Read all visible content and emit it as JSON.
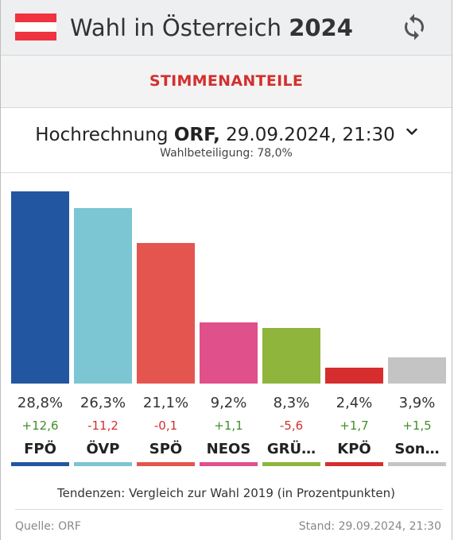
{
  "header": {
    "title_prefix": "Wahl in Österreich",
    "title_year": "2024",
    "flag_colors": [
      "#ef3340",
      "#ffffff",
      "#ef3340"
    ],
    "refresh_icon": "refresh-icon"
  },
  "tab": {
    "label": "STIMMENANTEILE"
  },
  "selector": {
    "prefix": "Hochrechnung",
    "source": "ORF,",
    "datetime": "29.09.2024, 21:30",
    "turnout": "Wahlbeteiligung: 78,0%"
  },
  "chart_data": {
    "type": "bar",
    "categories": [
      "FPÖ",
      "ÖVP",
      "SPÖ",
      "NEOS",
      "GRÜ…",
      "KPÖ",
      "Son…"
    ],
    "values": [
      28.8,
      26.3,
      21.1,
      9.2,
      8.3,
      2.4,
      3.9
    ],
    "value_labels": [
      "28,8%",
      "26,3%",
      "21,1%",
      "9,2%",
      "8,3%",
      "2,4%",
      "3,9%"
    ],
    "changes": [
      12.6,
      -11.2,
      -0.1,
      1.1,
      -5.6,
      1.7,
      1.5
    ],
    "change_labels": [
      "+12,6",
      "-11,2",
      "-0,1",
      "+1,1",
      "-5,6",
      "+1,7",
      "+1,5"
    ],
    "colors": [
      "#2356a0",
      "#7cc5d2",
      "#e4554f",
      "#e0508a",
      "#8fb53c",
      "#d62e2e",
      "#c4c4c4"
    ],
    "ylim": [
      0,
      28.8
    ]
  },
  "footnote": "Tendenzen: Vergleich zur Wahl 2019 (in Prozentpunkten)",
  "footer": {
    "source": "Quelle: ORF",
    "stand": "Stand: 29.09.2024, 21:30"
  }
}
